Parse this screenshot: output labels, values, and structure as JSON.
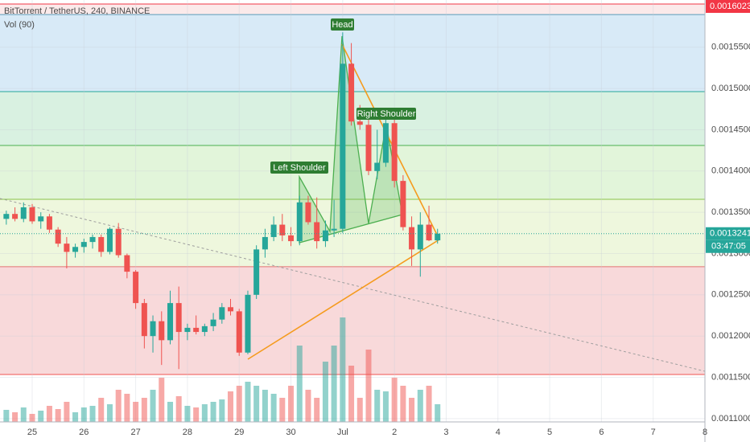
{
  "chart_data": {
    "type": "candlestick",
    "title": "BitTorrent / TetherUS, 240, BINANCE",
    "volume_title": "Vol (90)",
    "x": [
      24.5,
      24.667,
      24.833,
      25,
      25.167,
      25.333,
      25.5,
      25.667,
      25.833,
      26,
      26.167,
      26.333,
      26.5,
      26.667,
      26.833,
      27,
      27.167,
      27.333,
      27.5,
      27.667,
      27.833,
      28,
      28.167,
      28.333,
      28.5,
      28.667,
      28.833,
      29,
      29.167,
      29.333,
      29.5,
      29.667,
      29.833,
      30,
      30.167,
      30.333,
      30.5,
      30.667,
      30.833,
      31,
      31.167,
      31.333,
      31.5,
      31.667,
      31.833,
      32,
      32.167,
      32.333,
      32.5,
      32.667,
      32.833
    ],
    "open": [
      0.001342,
      0.001348,
      0.001342,
      0.001356,
      0.001339,
      0.001345,
      0.001329,
      0.001312,
      0.001302,
      0.001308,
      0.001314,
      0.00132,
      0.001302,
      0.00133,
      0.001298,
      0.001278,
      0.00124,
      0.0012,
      0.001218,
      0.001195,
      0.00124,
      0.001205,
      0.00121,
      0.001205,
      0.001212,
      0.00122,
      0.001235,
      0.00123,
      0.00118,
      0.00125,
      0.001305,
      0.00132,
      0.001335,
      0.001322,
      0.001315,
      0.001362,
      0.001338,
      0.001315,
      0.001328,
      0.00133,
      0.00153,
      0.00146,
      0.001456,
      0.0014,
      0.00141,
      0.001458,
      0.001388,
      0.001332,
      0.001305,
      0.001335,
      0.001316
    ],
    "high": [
      0.001352,
      0.001356,
      0.001362,
      0.00136,
      0.00135,
      0.001348,
      0.001332,
      0.00132,
      0.001312,
      0.001318,
      0.001323,
      0.001323,
      0.001332,
      0.001337,
      0.0013,
      0.00128,
      0.001245,
      0.001225,
      0.00123,
      0.001255,
      0.00126,
      0.001215,
      0.001225,
      0.001215,
      0.001228,
      0.00124,
      0.001245,
      0.001233,
      0.001255,
      0.00131,
      0.00133,
      0.001345,
      0.001348,
      0.001332,
      0.00137,
      0.00137,
      0.001368,
      0.00134,
      0.001365,
      0.001568,
      0.001555,
      0.00148,
      0.00147,
      0.00145,
      0.00147,
      0.001465,
      0.001395,
      0.001345,
      0.00135,
      0.001358,
      0.00133
    ],
    "low": [
      0.001335,
      0.001339,
      0.001338,
      0.001336,
      0.00133,
      0.001325,
      0.001308,
      0.001282,
      0.001295,
      0.001301,
      0.001306,
      0.001296,
      0.001299,
      0.001295,
      0.00127,
      0.001233,
      0.001185,
      0.00118,
      0.001165,
      0.00119,
      0.00116,
      0.001195,
      0.001202,
      0.0012,
      0.001206,
      0.001215,
      0.001225,
      0.001176,
      0.001178,
      0.001245,
      0.001295,
      0.001315,
      0.001315,
      0.001309,
      0.00131,
      0.001335,
      0.001306,
      0.001308,
      0.00132,
      0.001325,
      0.001455,
      0.00145,
      0.001395,
      0.00139,
      0.001405,
      0.00138,
      0.001328,
      0.001285,
      0.001272,
      0.001315,
      0.001312
    ],
    "close": [
      0.001348,
      0.001342,
      0.001356,
      0.001339,
      0.001345,
      0.001329,
      0.001312,
      0.001302,
      0.001308,
      0.001314,
      0.00132,
      0.001302,
      0.00133,
      0.001298,
      0.001278,
      0.00124,
      0.0012,
      0.001218,
      0.001195,
      0.00124,
      0.001205,
      0.00121,
      0.001205,
      0.001212,
      0.00122,
      0.001235,
      0.00123,
      0.00118,
      0.00125,
      0.001305,
      0.00132,
      0.001335,
      0.001322,
      0.001315,
      0.001362,
      0.001338,
      0.001315,
      0.001328,
      0.00133,
      0.00153,
      0.00146,
      0.001456,
      0.0014,
      0.00141,
      0.001458,
      0.001388,
      0.001332,
      0.001305,
      0.001335,
      0.001316,
      0.0013241
    ],
    "volume": [
      15,
      12,
      18,
      10,
      14,
      20,
      16,
      25,
      12,
      18,
      20,
      30,
      22,
      40,
      35,
      25,
      30,
      40,
      55,
      25,
      32,
      20,
      18,
      22,
      25,
      28,
      38,
      45,
      50,
      45,
      40,
      35,
      30,
      45,
      95,
      40,
      30,
      75,
      95,
      130,
      70,
      30,
      90,
      40,
      38,
      55,
      45,
      30,
      40,
      45,
      22
    ],
    "volume_lim": [
      0,
      525
    ],
    "up_color": "#26a69a",
    "down_color": "#ef5350",
    "volume_up_color": "rgba(38,166,154,0.5)",
    "volume_down_color": "rgba(239,83,80,0.5)",
    "xlim": [
      24.378,
      38
    ],
    "xticks": [
      25,
      26,
      27,
      28,
      29,
      30,
      {
        "value": 31,
        "label": "Jul"
      },
      {
        "value": 32,
        "label": "2"
      },
      {
        "value": 33,
        "label": "3"
      },
      {
        "value": 34,
        "label": "4"
      },
      {
        "value": 35,
        "label": "5"
      },
      {
        "value": 36,
        "label": "6"
      },
      {
        "value": 37,
        "label": "7"
      },
      {
        "value": 38,
        "label": "8"
      }
    ],
    "ylim": [
      0.001096,
      0.0016072
    ],
    "yticks": [
      {
        "value": 0.0011,
        "label": "0.0011000"
      },
      {
        "value": 0.00115,
        "label": "0.0011500"
      },
      {
        "value": 0.0012,
        "label": "0.0012000"
      },
      {
        "value": 0.00125,
        "label": "0.0012500"
      },
      {
        "value": 0.0013,
        "label": "0.0013000"
      },
      {
        "value": 0.00135,
        "label": "0.0013500"
      },
      {
        "value": 0.0014,
        "label": "0.0014000"
      },
      {
        "value": 0.00145,
        "label": "0.0014500"
      },
      {
        "value": 0.0015,
        "label": "0.0015000"
      },
      {
        "value": 0.00155,
        "label": "0.0015500"
      }
    ],
    "grid": true,
    "levels": [
      {
        "value": 0.0016023,
        "label": "0.0016023",
        "color": "#f23645"
      },
      {
        "value": 0.0015896,
        "color": "#5b9cb8"
      },
      {
        "value": 0.0014962,
        "color": "#26a69a"
      },
      {
        "value": 0.001431,
        "color": "#4caf50"
      },
      {
        "value": 0.0013657,
        "color": "#8bc34a"
      },
      {
        "value": 0.001284,
        "color": "#e57373"
      },
      {
        "value": 0.0011535,
        "color": "#ef5350"
      }
    ],
    "band_colors": [
      "#fbeaea",
      "#d8eaf7",
      "#d9f1e1",
      "#e2f5da",
      "#eef7dd",
      "#f8d9da"
    ],
    "last_price": {
      "value": 0.0013241,
      "label": "0.0013241"
    },
    "countdown": "03:47:05",
    "annotations": [
      "Head",
      "Left Shoulder",
      "Right Shoulder"
    ]
  }
}
